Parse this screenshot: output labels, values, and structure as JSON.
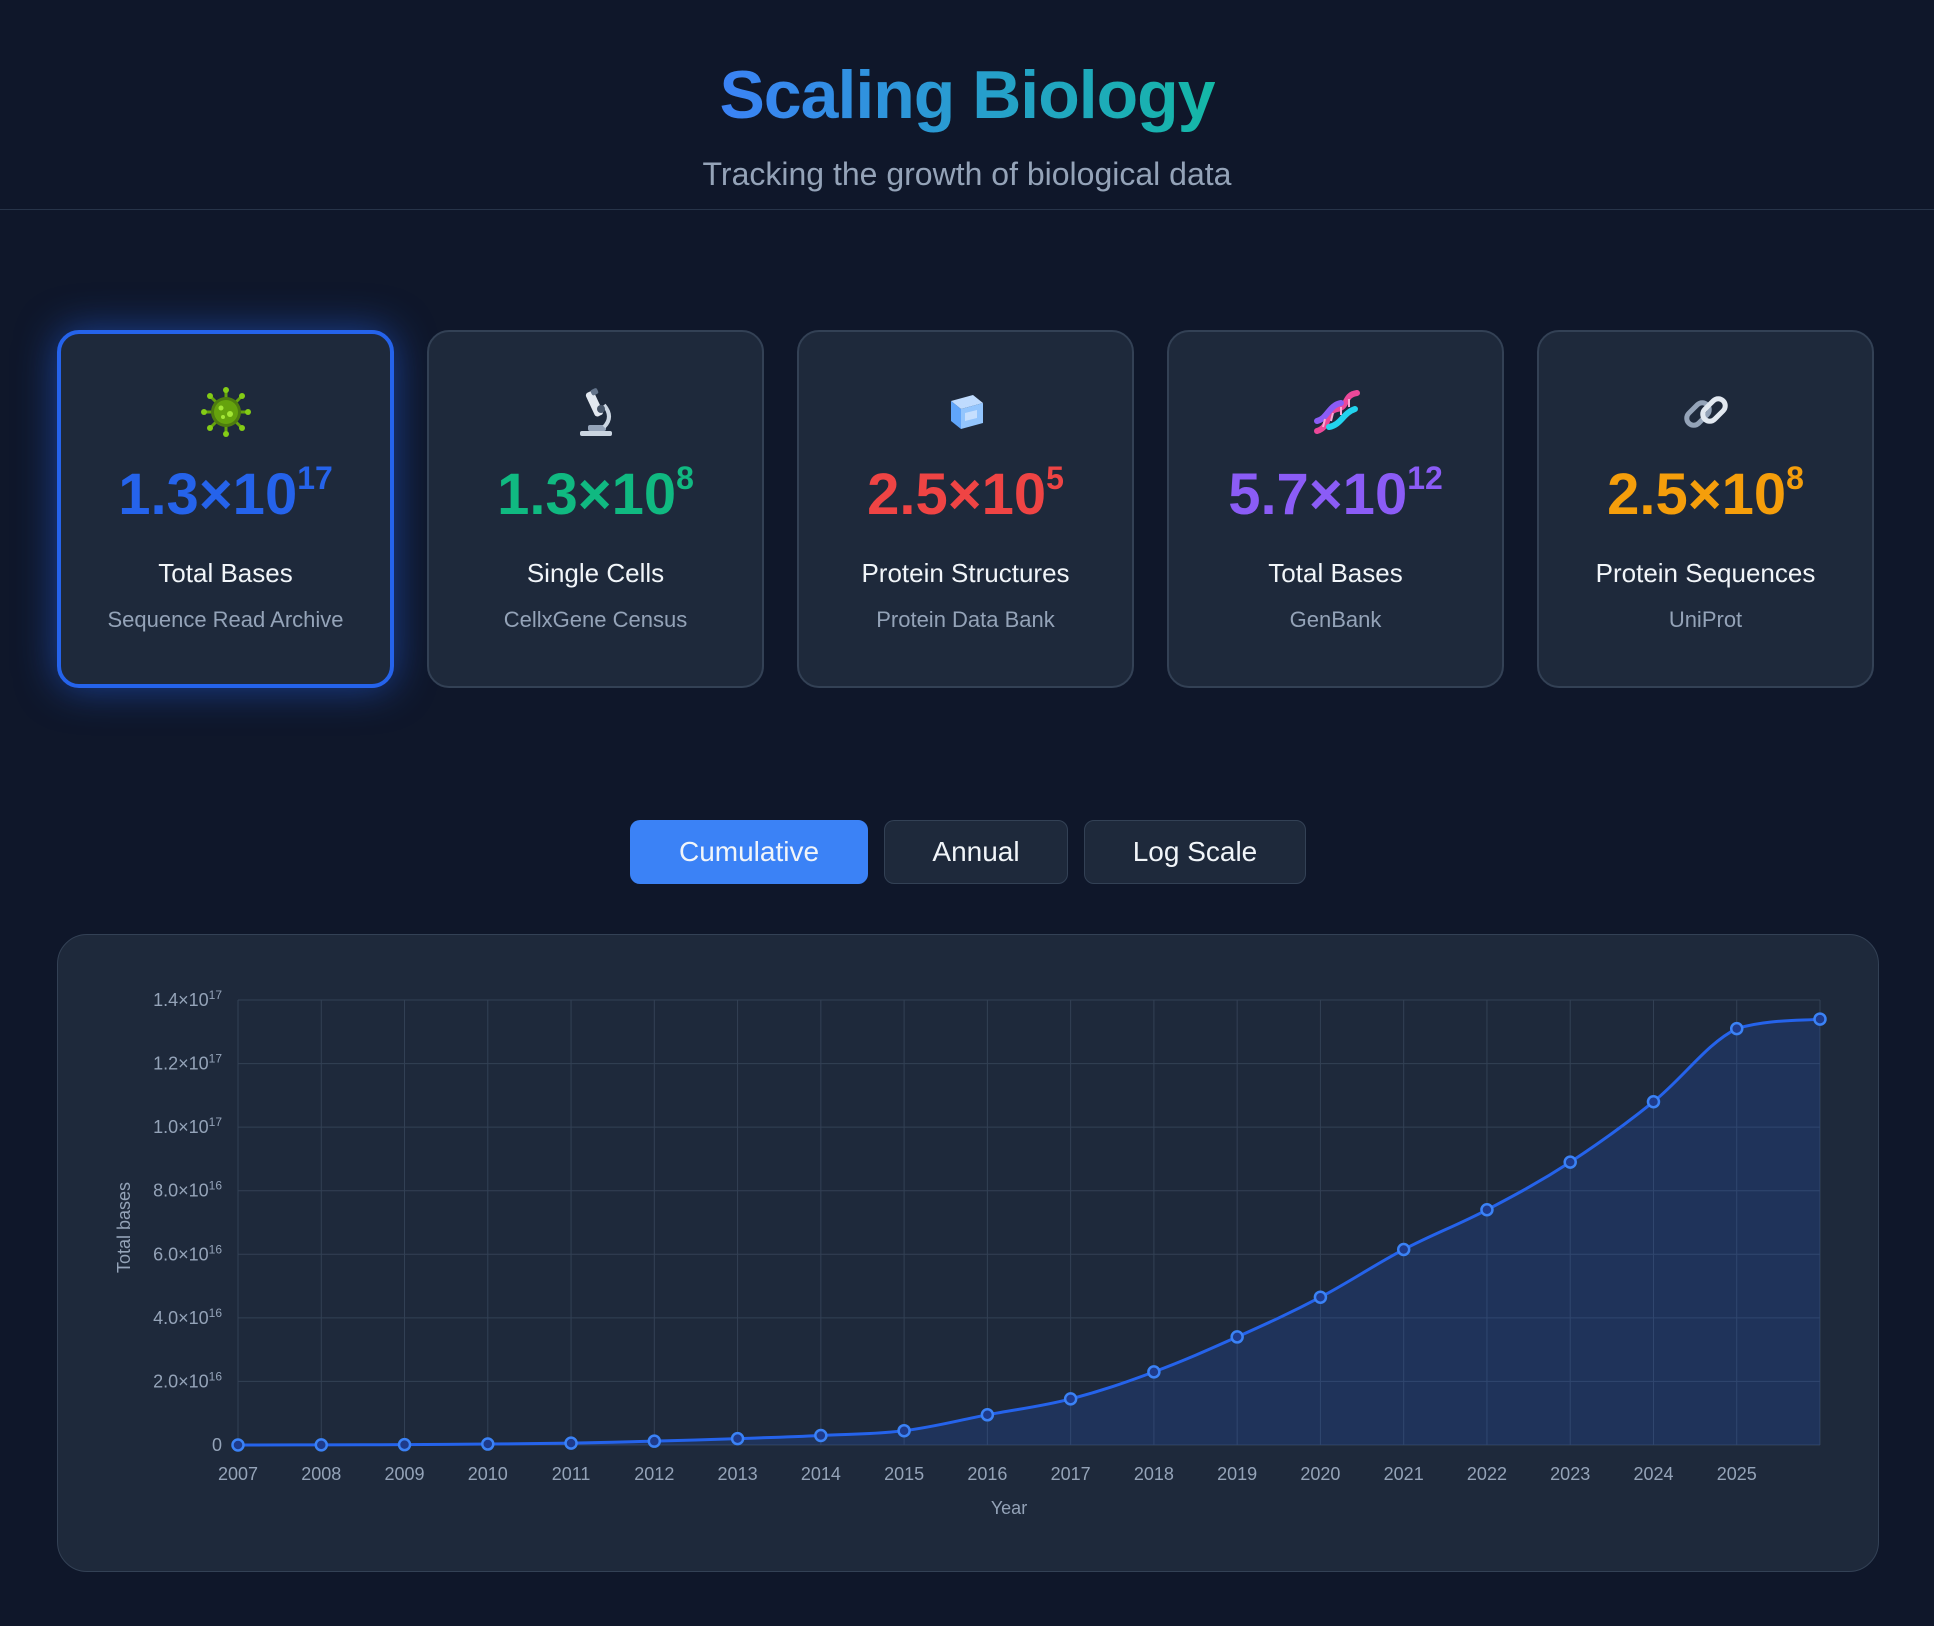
{
  "header": {
    "title": "Scaling Biology",
    "subtitle": "Tracking the growth of biological data"
  },
  "cards": [
    {
      "icon": "virus-icon",
      "mantissa": "1.3×10",
      "exponent": "17",
      "label": "Total Bases",
      "source": "Sequence Read Archive",
      "color": "#2563eb",
      "active": true
    },
    {
      "icon": "microscope-icon",
      "mantissa": "1.3×10",
      "exponent": "8",
      "label": "Single Cells",
      "source": "CellxGene Census",
      "color": "#10b981",
      "active": false
    },
    {
      "icon": "ice-cube-icon",
      "mantissa": "2.5×10",
      "exponent": "5",
      "label": "Protein Structures",
      "source": "Protein Data Bank",
      "color": "#ef4444",
      "active": false
    },
    {
      "icon": "dna-icon",
      "mantissa": "5.7×10",
      "exponent": "12",
      "label": "Total Bases",
      "source": "GenBank",
      "color": "#8b5cf6",
      "active": false
    },
    {
      "icon": "link-icon",
      "mantissa": "2.5×10",
      "exponent": "8",
      "label": "Protein Sequences",
      "source": "UniProt",
      "color": "#f59e0b",
      "active": false
    }
  ],
  "tabs": [
    {
      "label": "Cumulative",
      "active": true
    },
    {
      "label": "Annual",
      "active": false
    },
    {
      "label": "Log Scale",
      "active": false
    }
  ],
  "chart_data": {
    "type": "area",
    "xlabel": "Year",
    "ylabel": "Total bases",
    "ylim": [
      0,
      1.4e+17
    ],
    "grid": true,
    "color": "#2563eb",
    "x": [
      2007,
      2008,
      2009,
      2010,
      2011,
      2012,
      2013,
      2014,
      2015,
      2016,
      2017,
      2018,
      2019,
      2020,
      2021,
      2022,
      2023,
      2024,
      2025,
      2026
    ],
    "y": [
      10000000000000.0,
      50000000000000.0,
      100000000000000.0,
      300000000000000.0,
      600000000000000.0,
      1200000000000000.0,
      2000000000000000.0,
      3000000000000000.0,
      4500000000000000.0,
      9500000000000000.0,
      1.45e+16,
      2.3e+16,
      3.4e+16,
      4.65e+16,
      6.15e+16,
      7.4e+16,
      8.9e+16,
      1.08e+17,
      1.31e+17,
      1.34e+17
    ],
    "x_ticks": [
      "2007",
      "2008",
      "2009",
      "2010",
      "2011",
      "2012",
      "2013",
      "2014",
      "2015",
      "2016",
      "2017",
      "2018",
      "2019",
      "2020",
      "2021",
      "2022",
      "2023",
      "2024",
      "2025"
    ],
    "y_ticks": [
      {
        "value": 0,
        "mantissa": "0",
        "exponent": ""
      },
      {
        "value": 2e+16,
        "mantissa": "2.0×10",
        "exponent": "16"
      },
      {
        "value": 4e+16,
        "mantissa": "4.0×10",
        "exponent": "16"
      },
      {
        "value": 6e+16,
        "mantissa": "6.0×10",
        "exponent": "16"
      },
      {
        "value": 8e+16,
        "mantissa": "8.0×10",
        "exponent": "16"
      },
      {
        "value": 1e+17,
        "mantissa": "1.0×10",
        "exponent": "17"
      },
      {
        "value": 1.2e+17,
        "mantissa": "1.2×10",
        "exponent": "17"
      },
      {
        "value": 1.4e+17,
        "mantissa": "1.4×10",
        "exponent": "17"
      }
    ]
  }
}
